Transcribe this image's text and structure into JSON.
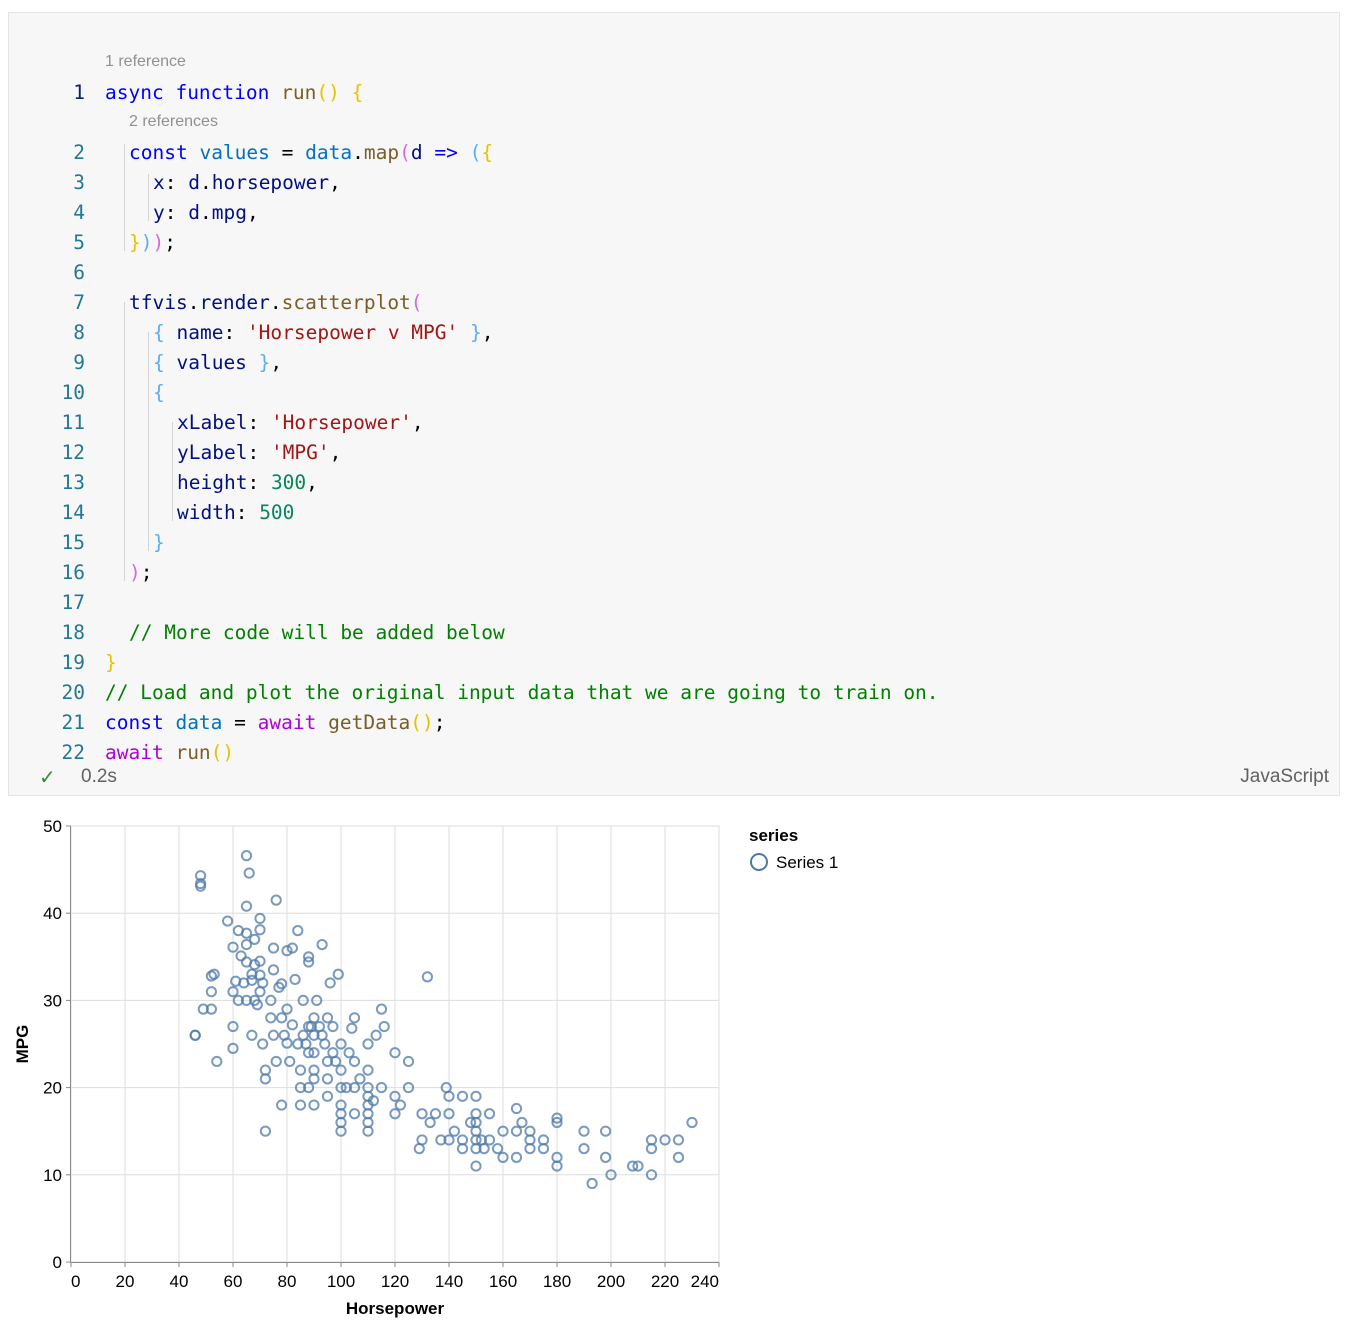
{
  "code_lens": [
    "1 reference",
    "2 references"
  ],
  "code_lines": [
    [
      [
        "k",
        "async "
      ],
      [
        "k",
        "function "
      ],
      [
        "f",
        "run"
      ],
      [
        "b1",
        "() {"
      ]
    ],
    [
      [
        "k",
        "const "
      ],
      [
        "v2",
        "values"
      ],
      [
        "p",
        " = "
      ],
      [
        "v2",
        "data"
      ],
      [
        "p",
        "."
      ],
      [
        "f",
        "map"
      ],
      [
        "b2",
        "("
      ],
      [
        "v",
        "d"
      ],
      [
        "k",
        " => "
      ],
      [
        "b3",
        "("
      ],
      [
        "b1",
        "{"
      ]
    ],
    [
      [
        "v",
        "x"
      ],
      [
        "p",
        ": "
      ],
      [
        "v",
        "d"
      ],
      [
        "p",
        "."
      ],
      [
        "v",
        "horsepower"
      ],
      [
        "p",
        ","
      ]
    ],
    [
      [
        "v",
        "y"
      ],
      [
        "p",
        ": "
      ],
      [
        "v",
        "d"
      ],
      [
        "p",
        "."
      ],
      [
        "v",
        "mpg"
      ],
      [
        "p",
        ","
      ]
    ],
    [
      [
        "b1",
        "}"
      ],
      [
        "b3",
        ")"
      ],
      [
        "b2",
        ")"
      ],
      [
        "p",
        ";"
      ]
    ],
    [],
    [
      [
        "v",
        "tfvis"
      ],
      [
        "p",
        "."
      ],
      [
        "v",
        "render"
      ],
      [
        "p",
        "."
      ],
      [
        "f",
        "scatterplot"
      ],
      [
        "b2",
        "("
      ]
    ],
    [
      [
        "b3",
        "{ "
      ],
      [
        "v",
        "name"
      ],
      [
        "p",
        ": "
      ],
      [
        "s",
        "'Horsepower v MPG'"
      ],
      [
        "b3",
        " }"
      ],
      [
        "p",
        ","
      ]
    ],
    [
      [
        "b3",
        "{ "
      ],
      [
        "v",
        "values"
      ],
      [
        "b3",
        " }"
      ],
      [
        "p",
        ","
      ]
    ],
    [
      [
        "b3",
        "{"
      ]
    ],
    [
      [
        "v",
        "xLabel"
      ],
      [
        "p",
        ": "
      ],
      [
        "s",
        "'Horsepower'"
      ],
      [
        "p",
        ","
      ]
    ],
    [
      [
        "v",
        "yLabel"
      ],
      [
        "p",
        ": "
      ],
      [
        "s",
        "'MPG'"
      ],
      [
        "p",
        ","
      ]
    ],
    [
      [
        "v",
        "height"
      ],
      [
        "p",
        ": "
      ],
      [
        "n",
        "300"
      ],
      [
        "p",
        ","
      ]
    ],
    [
      [
        "v",
        "width"
      ],
      [
        "p",
        ": "
      ],
      [
        "n",
        "500"
      ]
    ],
    [
      [
        "b3",
        "}"
      ]
    ],
    [
      [
        "b2",
        ")"
      ],
      [
        "p",
        ";"
      ]
    ],
    [],
    [
      [
        "cm",
        "// More code will be added below"
      ]
    ],
    [
      [
        "b1",
        "}"
      ]
    ],
    [
      [
        "cm",
        "// Load and plot the original input data that we are going to train on."
      ]
    ],
    [
      [
        "k",
        "const "
      ],
      [
        "v2",
        "data"
      ],
      [
        "p",
        " = "
      ],
      [
        "c",
        "await "
      ],
      [
        "f",
        "getData"
      ],
      [
        "b1",
        "()"
      ],
      [
        "p",
        ";"
      ]
    ],
    [
      [
        "c",
        "await "
      ],
      [
        "f",
        "run"
      ],
      [
        "b1",
        "()"
      ]
    ]
  ],
  "status": {
    "check_icon": "check-icon",
    "time": "0.2s",
    "language": "JavaScript"
  },
  "chart_data": {
    "type": "scatter",
    "xlabel": "Horsepower",
    "ylabel": "MPG",
    "xlim": [
      0,
      240
    ],
    "ylim": [
      0,
      50
    ],
    "xticks": [
      0,
      20,
      40,
      60,
      80,
      100,
      120,
      140,
      160,
      180,
      200,
      220,
      240
    ],
    "yticks": [
      0,
      10,
      20,
      30,
      40,
      50
    ],
    "grid": true,
    "legend": {
      "title": "series",
      "position": "right",
      "entries": [
        "Series 1"
      ]
    },
    "color": "#4c78a8",
    "series": [
      {
        "name": "Series 1",
        "points": [
          [
            46,
            26
          ],
          [
            46,
            26
          ],
          [
            48,
            43.1
          ],
          [
            48,
            44.3
          ],
          [
            48,
            43.4
          ],
          [
            49,
            29
          ],
          [
            52,
            29
          ],
          [
            52,
            31
          ],
          [
            52,
            32.8
          ],
          [
            53,
            33
          ],
          [
            54,
            23
          ],
          [
            58,
            39.1
          ],
          [
            60,
            36.1
          ],
          [
            60,
            31
          ],
          [
            60,
            27
          ],
          [
            60,
            24.5
          ],
          [
            61,
            32.2
          ],
          [
            62,
            30
          ],
          [
            62,
            38
          ],
          [
            63,
            35.1
          ],
          [
            64,
            32
          ],
          [
            65,
            46.6
          ],
          [
            65,
            36.4
          ],
          [
            65,
            34.4
          ],
          [
            65,
            30
          ],
          [
            65,
            37.7
          ],
          [
            65,
            40.8
          ],
          [
            66,
            44.6
          ],
          [
            67,
            33
          ],
          [
            67,
            32.3
          ],
          [
            67,
            26
          ],
          [
            68,
            30
          ],
          [
            68,
            34.1
          ],
          [
            68,
            37
          ],
          [
            69,
            29.5
          ],
          [
            70,
            31
          ],
          [
            70,
            32.9
          ],
          [
            70,
            39.4
          ],
          [
            70,
            34.5
          ],
          [
            70,
            38.1
          ],
          [
            71,
            25
          ],
          [
            71,
            32
          ],
          [
            72,
            15
          ],
          [
            72,
            21
          ],
          [
            72,
            22
          ],
          [
            74,
            30
          ],
          [
            74,
            28
          ],
          [
            75,
            36
          ],
          [
            75,
            33.5
          ],
          [
            75,
            26
          ],
          [
            76,
            23
          ],
          [
            76,
            41.5
          ],
          [
            77,
            31.5
          ],
          [
            78,
            18
          ],
          [
            78,
            28
          ],
          [
            78,
            31.9
          ],
          [
            79,
            26
          ],
          [
            80,
            35.7
          ],
          [
            80,
            29
          ],
          [
            80,
            25.1
          ],
          [
            81,
            23
          ],
          [
            82,
            27.2
          ],
          [
            82,
            36
          ],
          [
            83,
            32.4
          ],
          [
            84,
            38
          ],
          [
            84,
            25
          ],
          [
            85,
            18
          ],
          [
            85,
            22
          ],
          [
            85,
            20
          ],
          [
            86,
            26
          ],
          [
            86,
            30
          ],
          [
            87,
            25
          ],
          [
            88,
            20
          ],
          [
            88,
            24
          ],
          [
            88,
            27
          ],
          [
            88,
            35
          ],
          [
            88,
            34.4
          ],
          [
            89,
            27
          ],
          [
            90,
            28
          ],
          [
            90,
            26
          ],
          [
            90,
            24
          ],
          [
            90,
            21
          ],
          [
            90,
            22
          ],
          [
            90,
            18
          ],
          [
            91,
            30
          ],
          [
            92,
            27
          ],
          [
            93,
            36.4
          ],
          [
            93,
            26
          ],
          [
            94,
            25
          ],
          [
            95,
            28
          ],
          [
            95,
            23
          ],
          [
            95,
            21
          ],
          [
            95,
            19
          ],
          [
            96,
            32
          ],
          [
            97,
            24
          ],
          [
            97,
            27
          ],
          [
            98,
            23
          ],
          [
            99,
            33
          ],
          [
            100,
            25
          ],
          [
            100,
            22
          ],
          [
            100,
            20
          ],
          [
            100,
            18
          ],
          [
            100,
            17
          ],
          [
            100,
            16
          ],
          [
            100,
            15
          ],
          [
            102,
            20
          ],
          [
            103,
            24
          ],
          [
            104,
            26.8
          ],
          [
            105,
            20
          ],
          [
            105,
            17
          ],
          [
            105,
            23
          ],
          [
            105,
            28
          ],
          [
            107,
            21
          ],
          [
            110,
            22
          ],
          [
            110,
            20
          ],
          [
            110,
            17
          ],
          [
            110,
            19
          ],
          [
            110,
            18
          ],
          [
            110,
            16
          ],
          [
            110,
            15
          ],
          [
            110,
            25
          ],
          [
            112,
            18.5
          ],
          [
            113,
            26
          ],
          [
            115,
            20
          ],
          [
            115,
            29
          ],
          [
            116,
            27
          ],
          [
            120,
            19
          ],
          [
            120,
            24
          ],
          [
            120,
            17
          ],
          [
            122,
            18
          ],
          [
            125,
            20
          ],
          [
            125,
            23
          ],
          [
            129,
            13
          ],
          [
            130,
            17
          ],
          [
            130,
            14
          ],
          [
            132,
            32.7
          ],
          [
            133,
            16
          ],
          [
            135,
            17
          ],
          [
            137,
            14
          ],
          [
            139,
            20
          ],
          [
            140,
            19
          ],
          [
            140,
            17
          ],
          [
            140,
            14
          ],
          [
            142,
            15
          ],
          [
            145,
            13
          ],
          [
            145,
            14
          ],
          [
            145,
            19
          ],
          [
            148,
            16
          ],
          [
            150,
            15
          ],
          [
            150,
            16
          ],
          [
            150,
            17
          ],
          [
            150,
            13
          ],
          [
            150,
            11
          ],
          [
            150,
            14
          ],
          [
            150,
            19
          ],
          [
            152,
            14
          ],
          [
            153,
            13
          ],
          [
            155,
            17
          ],
          [
            155,
            14
          ],
          [
            158,
            13
          ],
          [
            160,
            15
          ],
          [
            160,
            12
          ],
          [
            165,
            17.6
          ],
          [
            165,
            15
          ],
          [
            165,
            12
          ],
          [
            167,
            16
          ],
          [
            170,
            15
          ],
          [
            170,
            14
          ],
          [
            170,
            13
          ],
          [
            175,
            13
          ],
          [
            175,
            14
          ],
          [
            180,
            11
          ],
          [
            180,
            16
          ],
          [
            180,
            12
          ],
          [
            180,
            16.5
          ],
          [
            190,
            13
          ],
          [
            190,
            15
          ],
          [
            193,
            9
          ],
          [
            198,
            15
          ],
          [
            198,
            12
          ],
          [
            200,
            10
          ],
          [
            208,
            11
          ],
          [
            210,
            11
          ],
          [
            215,
            14
          ],
          [
            215,
            13
          ],
          [
            215,
            10
          ],
          [
            220,
            14
          ],
          [
            225,
            14
          ],
          [
            225,
            12
          ],
          [
            230,
            16
          ]
        ]
      }
    ]
  }
}
